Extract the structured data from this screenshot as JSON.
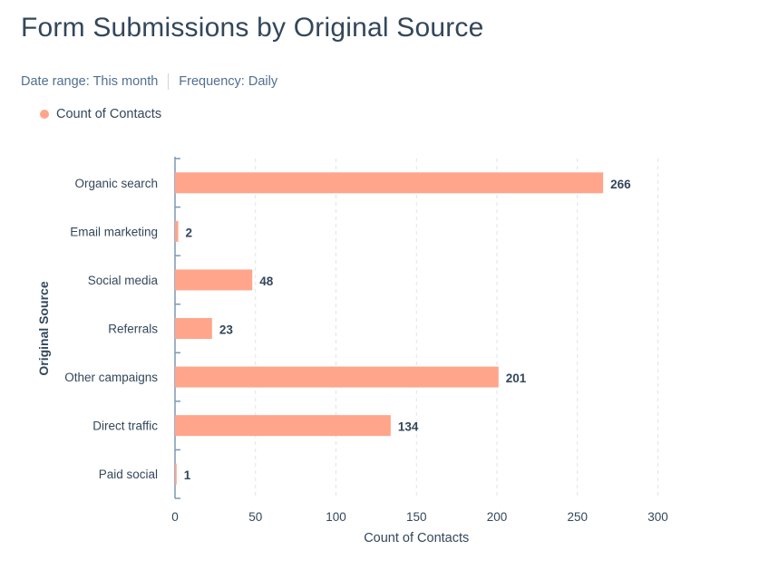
{
  "header": {
    "title": "Form Submissions by Original Source",
    "date_range_label": "Date range:",
    "date_range_value": "This month",
    "frequency_label": "Frequency:",
    "frequency_value": "Daily"
  },
  "colors": {
    "bar": "#ffa58b",
    "axis": "#7c98b6",
    "grid": "#dfe3eb",
    "text": "#33475b"
  },
  "chart_data": {
    "type": "bar",
    "orientation": "horizontal",
    "title": "Form Submissions by Original Source",
    "xlabel": "Count of Contacts",
    "ylabel": "Original Source",
    "categories": [
      "Organic search",
      "Email marketing",
      "Social media",
      "Referrals",
      "Other campaigns",
      "Direct traffic",
      "Paid social"
    ],
    "series": [
      {
        "name": "Count of Contacts",
        "values": [
          266,
          2,
          48,
          23,
          201,
          134,
          1
        ]
      }
    ],
    "xlim": [
      0,
      300
    ],
    "xticks": [
      0,
      50,
      100,
      150,
      200,
      250,
      300
    ],
    "grid": true,
    "legend": "top-left"
  }
}
